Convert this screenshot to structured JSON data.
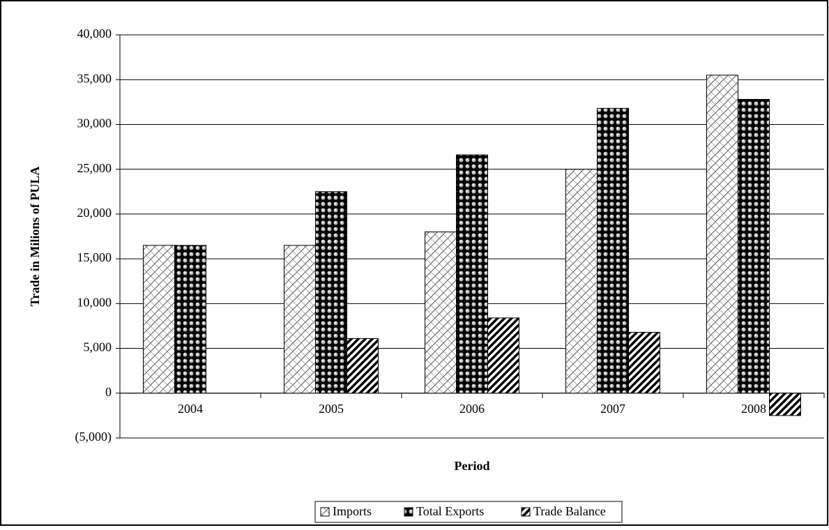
{
  "chart_data": {
    "type": "bar",
    "categories": [
      "2004",
      "2005",
      "2006",
      "2007",
      "2008"
    ],
    "series": [
      {
        "name": "Imports",
        "values": [
          16500,
          16500,
          18000,
          25000,
          35500
        ]
      },
      {
        "name": "Total Exports",
        "values": [
          16500,
          22500,
          26600,
          31800,
          32800
        ]
      },
      {
        "name": "Trade Balance",
        "values": [
          0,
          6100,
          8400,
          6800,
          -2500
        ]
      }
    ],
    "ylabel": "Trade in Milions of PULA",
    "xlabel": "Period",
    "ylim": [
      -5000,
      40000
    ],
    "yticks": [
      {
        "value": -5000,
        "label": "(5,000)"
      },
      0,
      {
        "value": 5000,
        "label": "5,000"
      },
      {
        "value": 10000,
        "label": "10,000"
      },
      {
        "value": 15000,
        "label": "15,000"
      },
      {
        "value": 20000,
        "label": "20,000"
      },
      {
        "value": 25000,
        "label": "25,000"
      },
      {
        "value": 30000,
        "label": "30,000"
      },
      {
        "value": 35000,
        "label": "35,000"
      },
      {
        "value": 40000,
        "label": "40,000"
      }
    ],
    "grid": true,
    "legend": "bottom"
  }
}
